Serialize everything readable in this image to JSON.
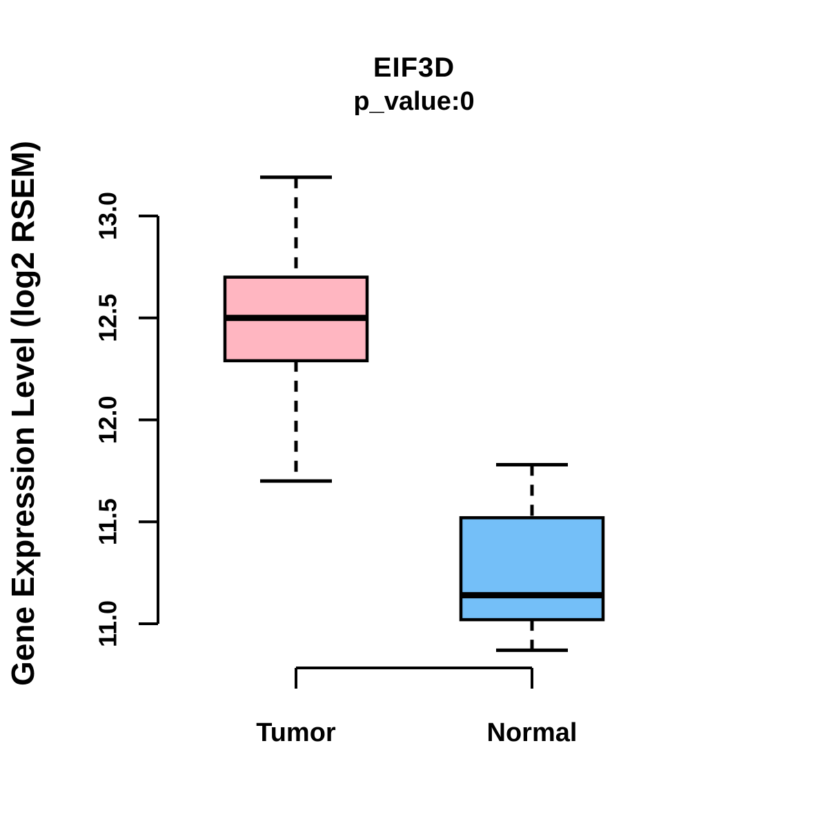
{
  "chart_data": {
    "type": "boxplot",
    "title": "EIF3D",
    "subtitle": "p_value:0",
    "ylabel": "Gene Expression Level (log2 RSEM)",
    "xlabel": "",
    "categories": [
      "Tumor",
      "Normal"
    ],
    "y_ticks": [
      11.0,
      11.5,
      12.0,
      12.5,
      13.0
    ],
    "y_tick_labels": [
      "11.0",
      "11.5",
      "12.0",
      "12.5",
      "13.0"
    ],
    "ylim": [
      10.8,
      13.3
    ],
    "grid": false,
    "legend": "none",
    "series": [
      {
        "name": "Tumor",
        "box_color": "#FFB6C1",
        "lower_whisker": 11.7,
        "q1": 12.29,
        "median": 12.5,
        "q3": 12.7,
        "upper_whisker": 13.19
      },
      {
        "name": "Normal",
        "box_color": "#74BFF8",
        "lower_whisker": 10.87,
        "q1": 11.02,
        "median": 11.14,
        "q3": 11.52,
        "upper_whisker": 11.78
      }
    ],
    "stroke_color": "#000000",
    "background_color": "#FFFFFF"
  }
}
